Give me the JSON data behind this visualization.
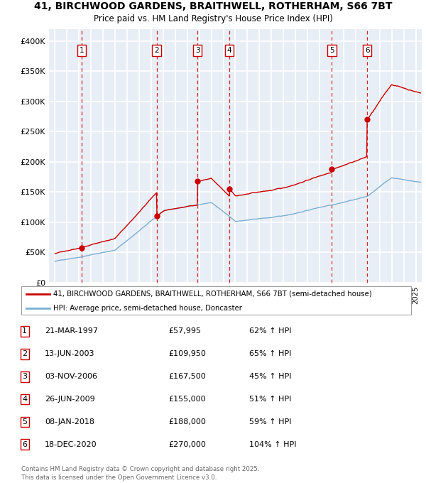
{
  "title_line1": "41, BIRCHWOOD GARDENS, BRAITHWELL, ROTHERHAM, S66 7BT",
  "title_line2": "Price paid vs. HM Land Registry's House Price Index (HPI)",
  "ylim": [
    0,
    420000
  ],
  "xlim_start": 1994.5,
  "xlim_end": 2025.5,
  "yticks": [
    0,
    50000,
    100000,
    150000,
    200000,
    250000,
    300000,
    350000,
    400000
  ],
  "ytick_labels": [
    "£0",
    "£50K",
    "£100K",
    "£150K",
    "£200K",
    "£250K",
    "£300K",
    "£350K",
    "£400K"
  ],
  "bg_color": "#E8EEF6",
  "grid_color": "#ffffff",
  "red_line_color": "#CC0000",
  "blue_line_color": "#7BAFD4",
  "annotation_box_color": "#CC0000",
  "dashed_line_color": "#CC0000",
  "sales": [
    {
      "num": 1,
      "date": "21-MAR-1997",
      "year": 1997.22,
      "price": 57995,
      "label": "1"
    },
    {
      "num": 2,
      "date": "13-JUN-2003",
      "year": 2003.45,
      "price": 109950,
      "label": "2"
    },
    {
      "num": 3,
      "date": "03-NOV-2006",
      "year": 2006.84,
      "price": 167500,
      "label": "3"
    },
    {
      "num": 4,
      "date": "26-JUN-2009",
      "year": 2009.49,
      "price": 155000,
      "label": "4"
    },
    {
      "num": 5,
      "date": "08-JAN-2018",
      "year": 2018.03,
      "price": 188000,
      "label": "5"
    },
    {
      "num": 6,
      "date": "18-DEC-2020",
      "year": 2020.96,
      "price": 270000,
      "label": "6"
    }
  ],
  "legend_line1": "41, BIRCHWOOD GARDENS, BRAITHWELL, ROTHERHAM, S66 7BT (semi-detached house)",
  "legend_line2": "HPI: Average price, semi-detached house, Doncaster",
  "footer1": "Contains HM Land Registry data © Crown copyright and database right 2025.",
  "footer2": "This data is licensed under the Open Government Licence v3.0.",
  "table_rows": [
    [
      "1",
      "21-MAR-1997",
      "£57,995",
      "62% ↑ HPI"
    ],
    [
      "2",
      "13-JUN-2003",
      "£109,950",
      "65% ↑ HPI"
    ],
    [
      "3",
      "03-NOV-2006",
      "£167,500",
      "45% ↑ HPI"
    ],
    [
      "4",
      "26-JUN-2009",
      "£155,000",
      "51% ↑ HPI"
    ],
    [
      "5",
      "08-JAN-2018",
      "£188,000",
      "59% ↑ HPI"
    ],
    [
      "6",
      "18-DEC-2020",
      "£270,000",
      "104% ↑ HPI"
    ]
  ]
}
